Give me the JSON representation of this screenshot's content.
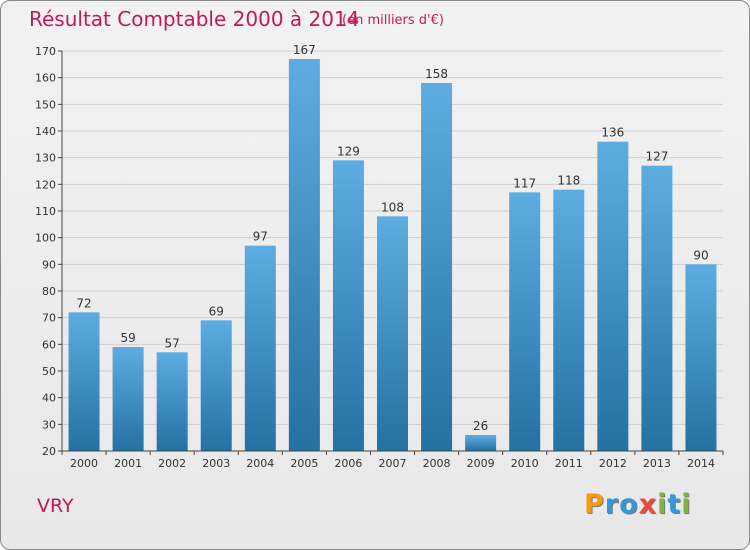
{
  "header": {
    "title": "Résultat Comptable 2000 à 2014",
    "subtitle": "(en milliers d'€)"
  },
  "footer": {
    "commune": "VRY",
    "logo_text": "Proxiti",
    "logo_letters": [
      {
        "ch": "P",
        "color": "#f39c12"
      },
      {
        "ch": "r",
        "color": "#3498db"
      },
      {
        "ch": "o",
        "color": "#3498db"
      },
      {
        "ch": "x",
        "color": "#e74c3c"
      },
      {
        "ch": "i",
        "color": "#7cb342"
      },
      {
        "ch": "t",
        "color": "#3498db"
      },
      {
        "ch": "i",
        "color": "#7cb342"
      }
    ]
  },
  "colors": {
    "accent": "#c2185b",
    "bar_top": "#5dade2",
    "bar_bottom": "#2471a3",
    "grid": "#cfcfcf",
    "axis": "#444444",
    "text": "#333333"
  },
  "chart_data": {
    "type": "bar",
    "title": "Résultat Comptable 2000 à 2014",
    "xlabel": "",
    "ylabel": "",
    "categories": [
      "2000",
      "2001",
      "2002",
      "2003",
      "2004",
      "2005",
      "2006",
      "2007",
      "2008",
      "2009",
      "2010",
      "2011",
      "2012",
      "2013",
      "2014"
    ],
    "values": [
      72,
      59,
      57,
      69,
      97,
      167,
      129,
      108,
      158,
      26,
      117,
      118,
      136,
      127,
      90
    ],
    "ylim": [
      20,
      170
    ],
    "yticks": [
      20,
      30,
      40,
      50,
      60,
      70,
      80,
      90,
      100,
      110,
      120,
      130,
      140,
      150,
      160,
      170
    ],
    "grid": true,
    "data_labels": true
  }
}
